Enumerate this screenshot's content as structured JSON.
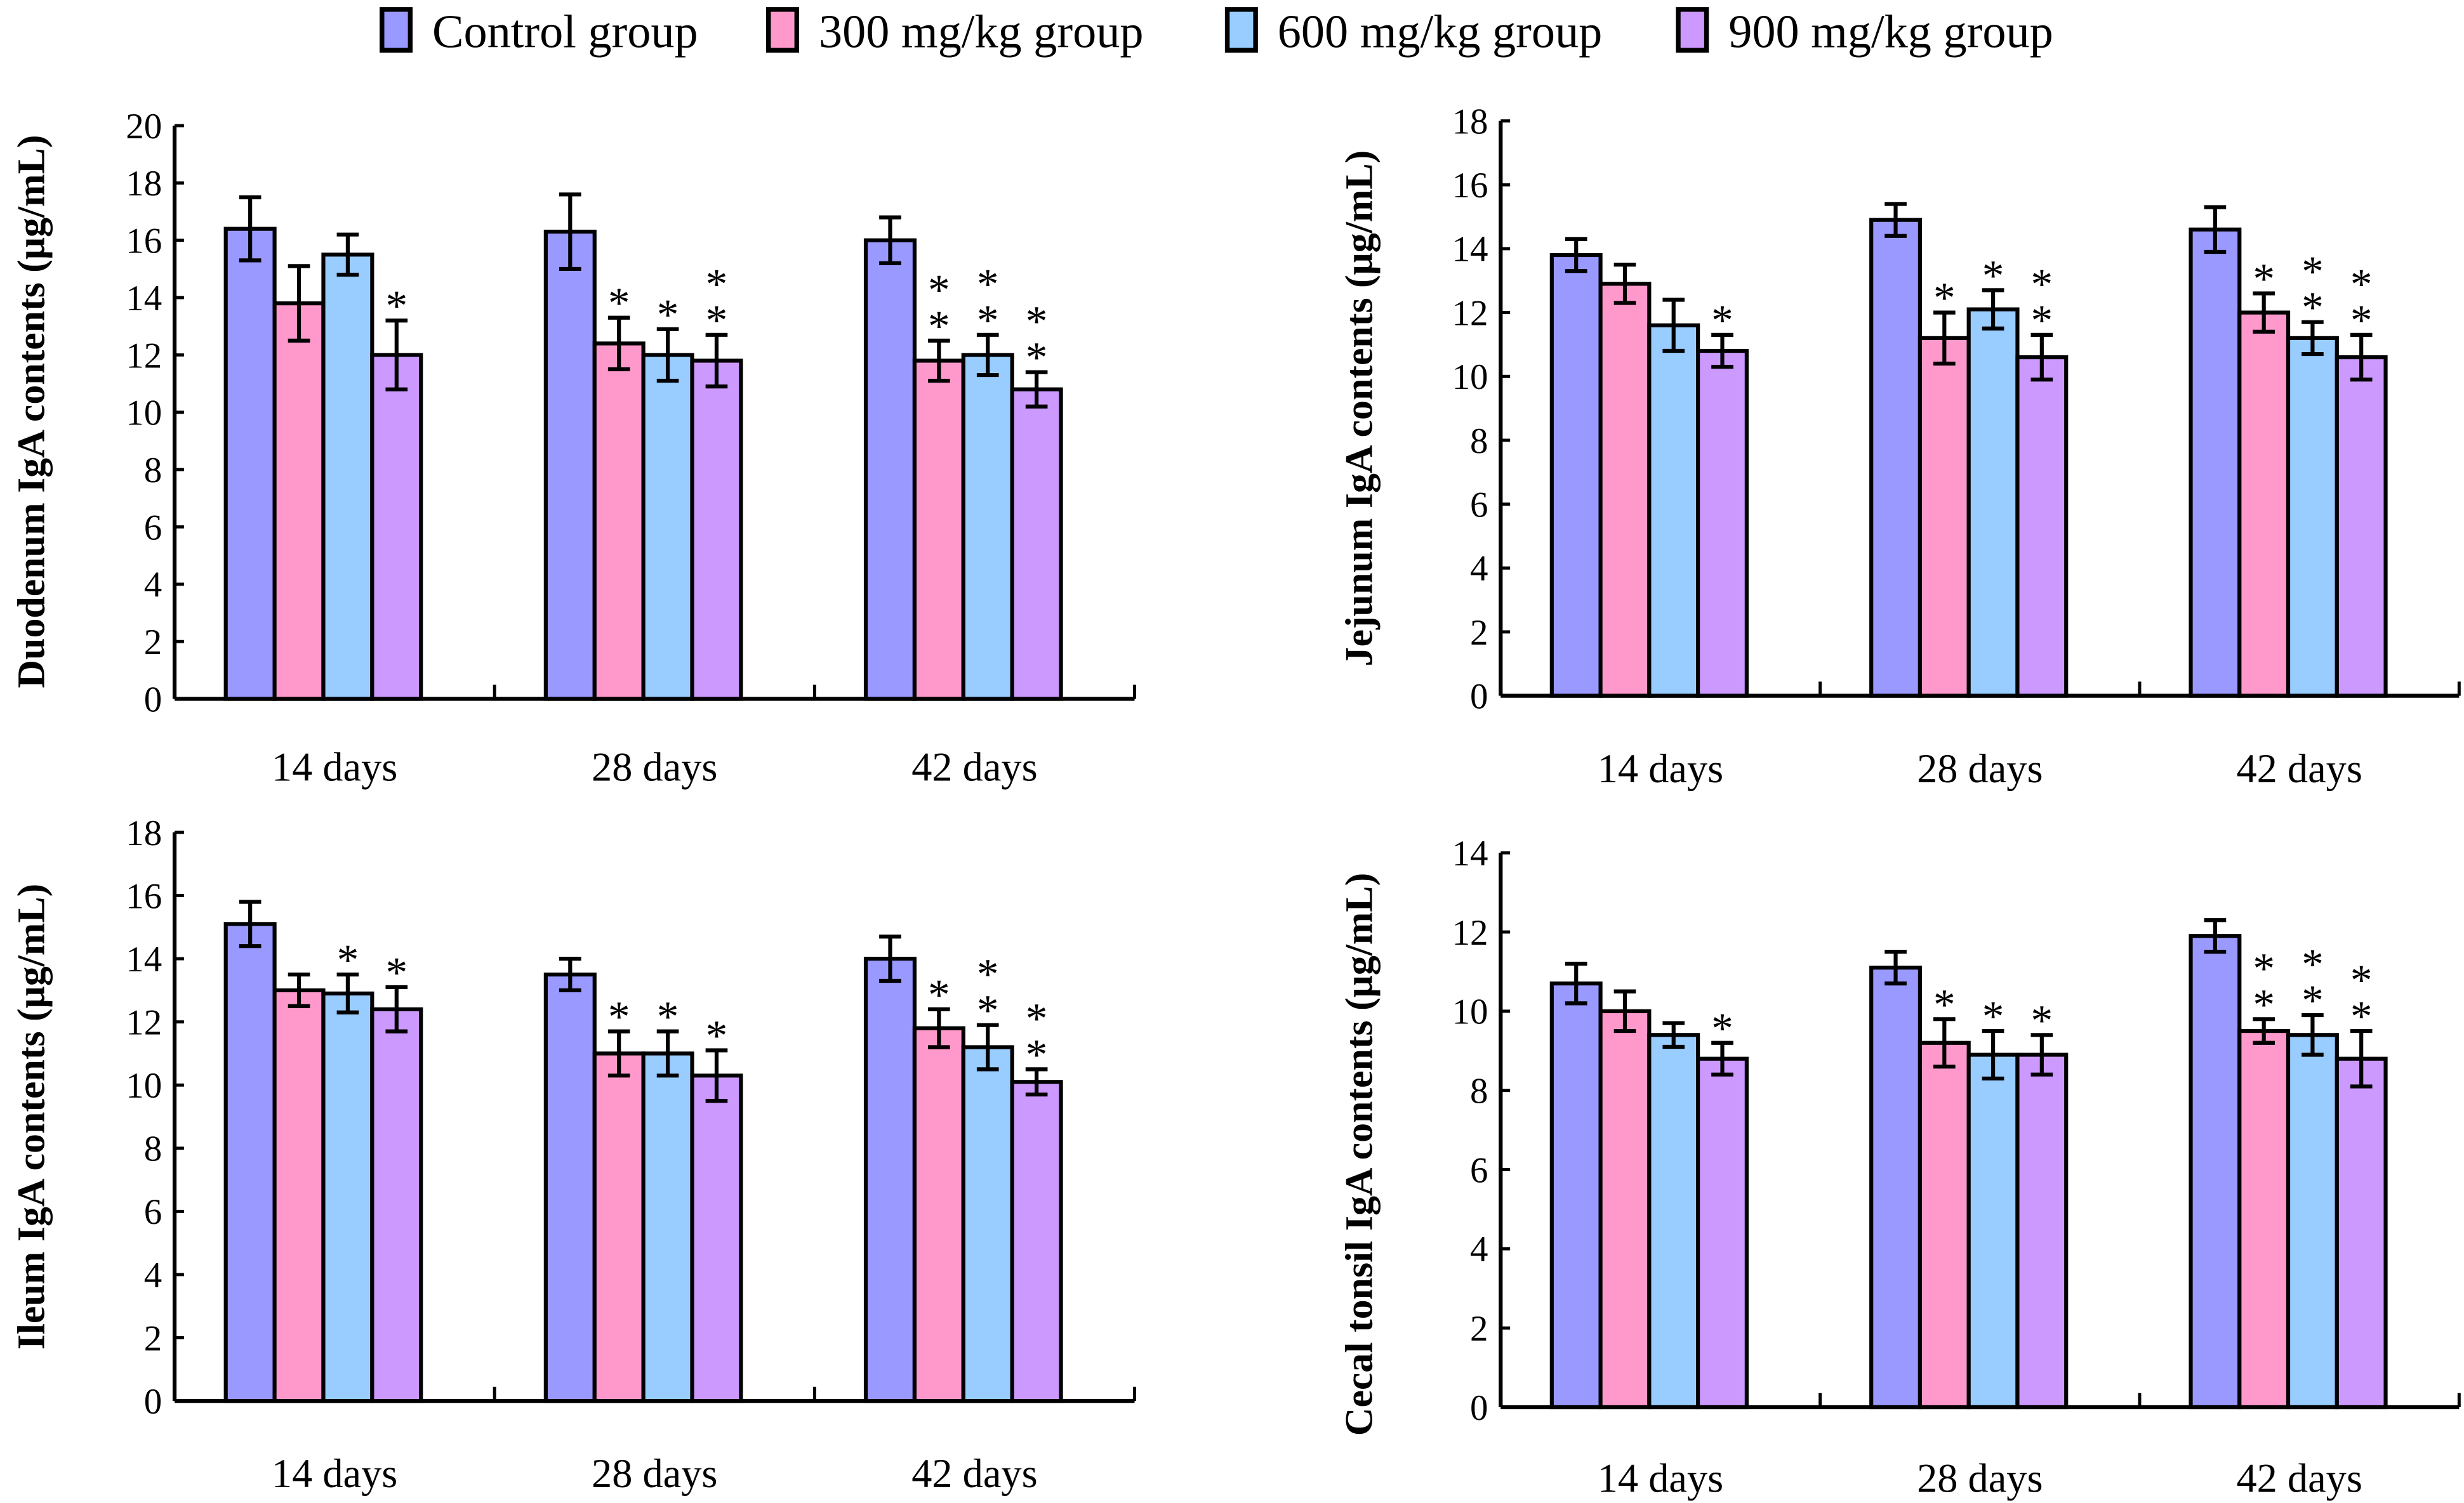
{
  "legend": [
    {
      "label": "Control group",
      "color": "#9999FF"
    },
    {
      "label": "300 mg/kg group",
      "color": "#FF99CC"
    },
    {
      "label": "600 mg/kg group",
      "color": "#99CCFF"
    },
    {
      "label": "900 mg/kg group",
      "color": "#CC99FF"
    }
  ],
  "chart_data": [
    {
      "type": "bar",
      "ylabel": "Duodenum IgA contents (μg/mL)",
      "categories": [
        "14 days",
        "28 days",
        "42 days"
      ],
      "ylim": [
        0,
        20
      ],
      "ytick_step": 2,
      "series": [
        {
          "name": "Control group",
          "values": [
            16.4,
            16.3,
            16.0
          ],
          "errors": [
            1.1,
            1.3,
            0.8
          ],
          "sig": [
            "",
            "",
            ""
          ]
        },
        {
          "name": "300 mg/kg group",
          "values": [
            13.8,
            12.4,
            11.8
          ],
          "errors": [
            1.3,
            0.9,
            0.7
          ],
          "sig": [
            "",
            "*",
            "**"
          ]
        },
        {
          "name": "600 mg/kg group",
          "values": [
            15.5,
            12.0,
            12.0
          ],
          "errors": [
            0.7,
            0.9,
            0.7
          ],
          "sig": [
            "",
            "*",
            "**"
          ]
        },
        {
          "name": "900 mg/kg group",
          "values": [
            12.0,
            11.8,
            10.8
          ],
          "errors": [
            1.2,
            0.9,
            0.6
          ],
          "sig": [
            "*",
            "**",
            "**"
          ]
        }
      ]
    },
    {
      "type": "bar",
      "ylabel": "Jejunum IgA contents (μg/mL)",
      "categories": [
        "14 days",
        "28 days",
        "42 days"
      ],
      "ylim": [
        0,
        18
      ],
      "ytick_step": 2,
      "series": [
        {
          "name": "Control group",
          "values": [
            13.8,
            14.9,
            14.6
          ],
          "errors": [
            0.5,
            0.5,
            0.7
          ],
          "sig": [
            "",
            "",
            ""
          ]
        },
        {
          "name": "300 mg/kg group",
          "values": [
            12.9,
            11.2,
            12.0
          ],
          "errors": [
            0.6,
            0.8,
            0.6
          ],
          "sig": [
            "",
            "*",
            "*"
          ]
        },
        {
          "name": "600 mg/kg group",
          "values": [
            11.6,
            12.1,
            11.2
          ],
          "errors": [
            0.8,
            0.6,
            0.5
          ],
          "sig": [
            "",
            "*",
            "**"
          ]
        },
        {
          "name": "900 mg/kg group",
          "values": [
            10.8,
            10.6,
            10.6
          ],
          "errors": [
            0.5,
            0.7,
            0.7
          ],
          "sig": [
            "*",
            "**",
            "**"
          ]
        }
      ]
    },
    {
      "type": "bar",
      "ylabel": "Ileum IgA contents (μg/mL)",
      "categories": [
        "14 days",
        "28 days",
        "42 days"
      ],
      "ylim": [
        0,
        18
      ],
      "ytick_step": 2,
      "series": [
        {
          "name": "Control group",
          "values": [
            15.1,
            13.5,
            14.0
          ],
          "errors": [
            0.7,
            0.5,
            0.7
          ],
          "sig": [
            "",
            "",
            ""
          ]
        },
        {
          "name": "300 mg/kg group",
          "values": [
            13.0,
            11.0,
            11.8
          ],
          "errors": [
            0.5,
            0.7,
            0.6
          ],
          "sig": [
            "",
            "*",
            "*"
          ]
        },
        {
          "name": "600 mg/kg group",
          "values": [
            12.9,
            11.0,
            11.2
          ],
          "errors": [
            0.6,
            0.7,
            0.7
          ],
          "sig": [
            "*",
            "*",
            "**"
          ]
        },
        {
          "name": "900 mg/kg group",
          "values": [
            12.4,
            10.3,
            10.1
          ],
          "errors": [
            0.7,
            0.8,
            0.4
          ],
          "sig": [
            "*",
            "*",
            "**"
          ]
        }
      ]
    },
    {
      "type": "bar",
      "ylabel": "Cecal tonsil IgA contents (μg/mL)",
      "categories": [
        "14 days",
        "28 days",
        "42 days"
      ],
      "ylim": [
        0,
        14
      ],
      "ytick_step": 2,
      "series": [
        {
          "name": "Control group",
          "values": [
            10.7,
            11.1,
            11.9
          ],
          "errors": [
            0.5,
            0.4,
            0.4
          ],
          "sig": [
            "",
            "",
            ""
          ]
        },
        {
          "name": "300 mg/kg group",
          "values": [
            10.0,
            9.2,
            9.5
          ],
          "errors": [
            0.5,
            0.6,
            0.3
          ],
          "sig": [
            "",
            "*",
            "**"
          ]
        },
        {
          "name": "600 mg/kg group",
          "values": [
            9.4,
            8.9,
            9.4
          ],
          "errors": [
            0.3,
            0.6,
            0.5
          ],
          "sig": [
            "",
            "*",
            "**"
          ]
        },
        {
          "name": "900 mg/kg group",
          "values": [
            8.8,
            8.9,
            8.8
          ],
          "errors": [
            0.4,
            0.5,
            0.7
          ],
          "sig": [
            "*",
            "*",
            "**"
          ]
        }
      ]
    }
  ]
}
